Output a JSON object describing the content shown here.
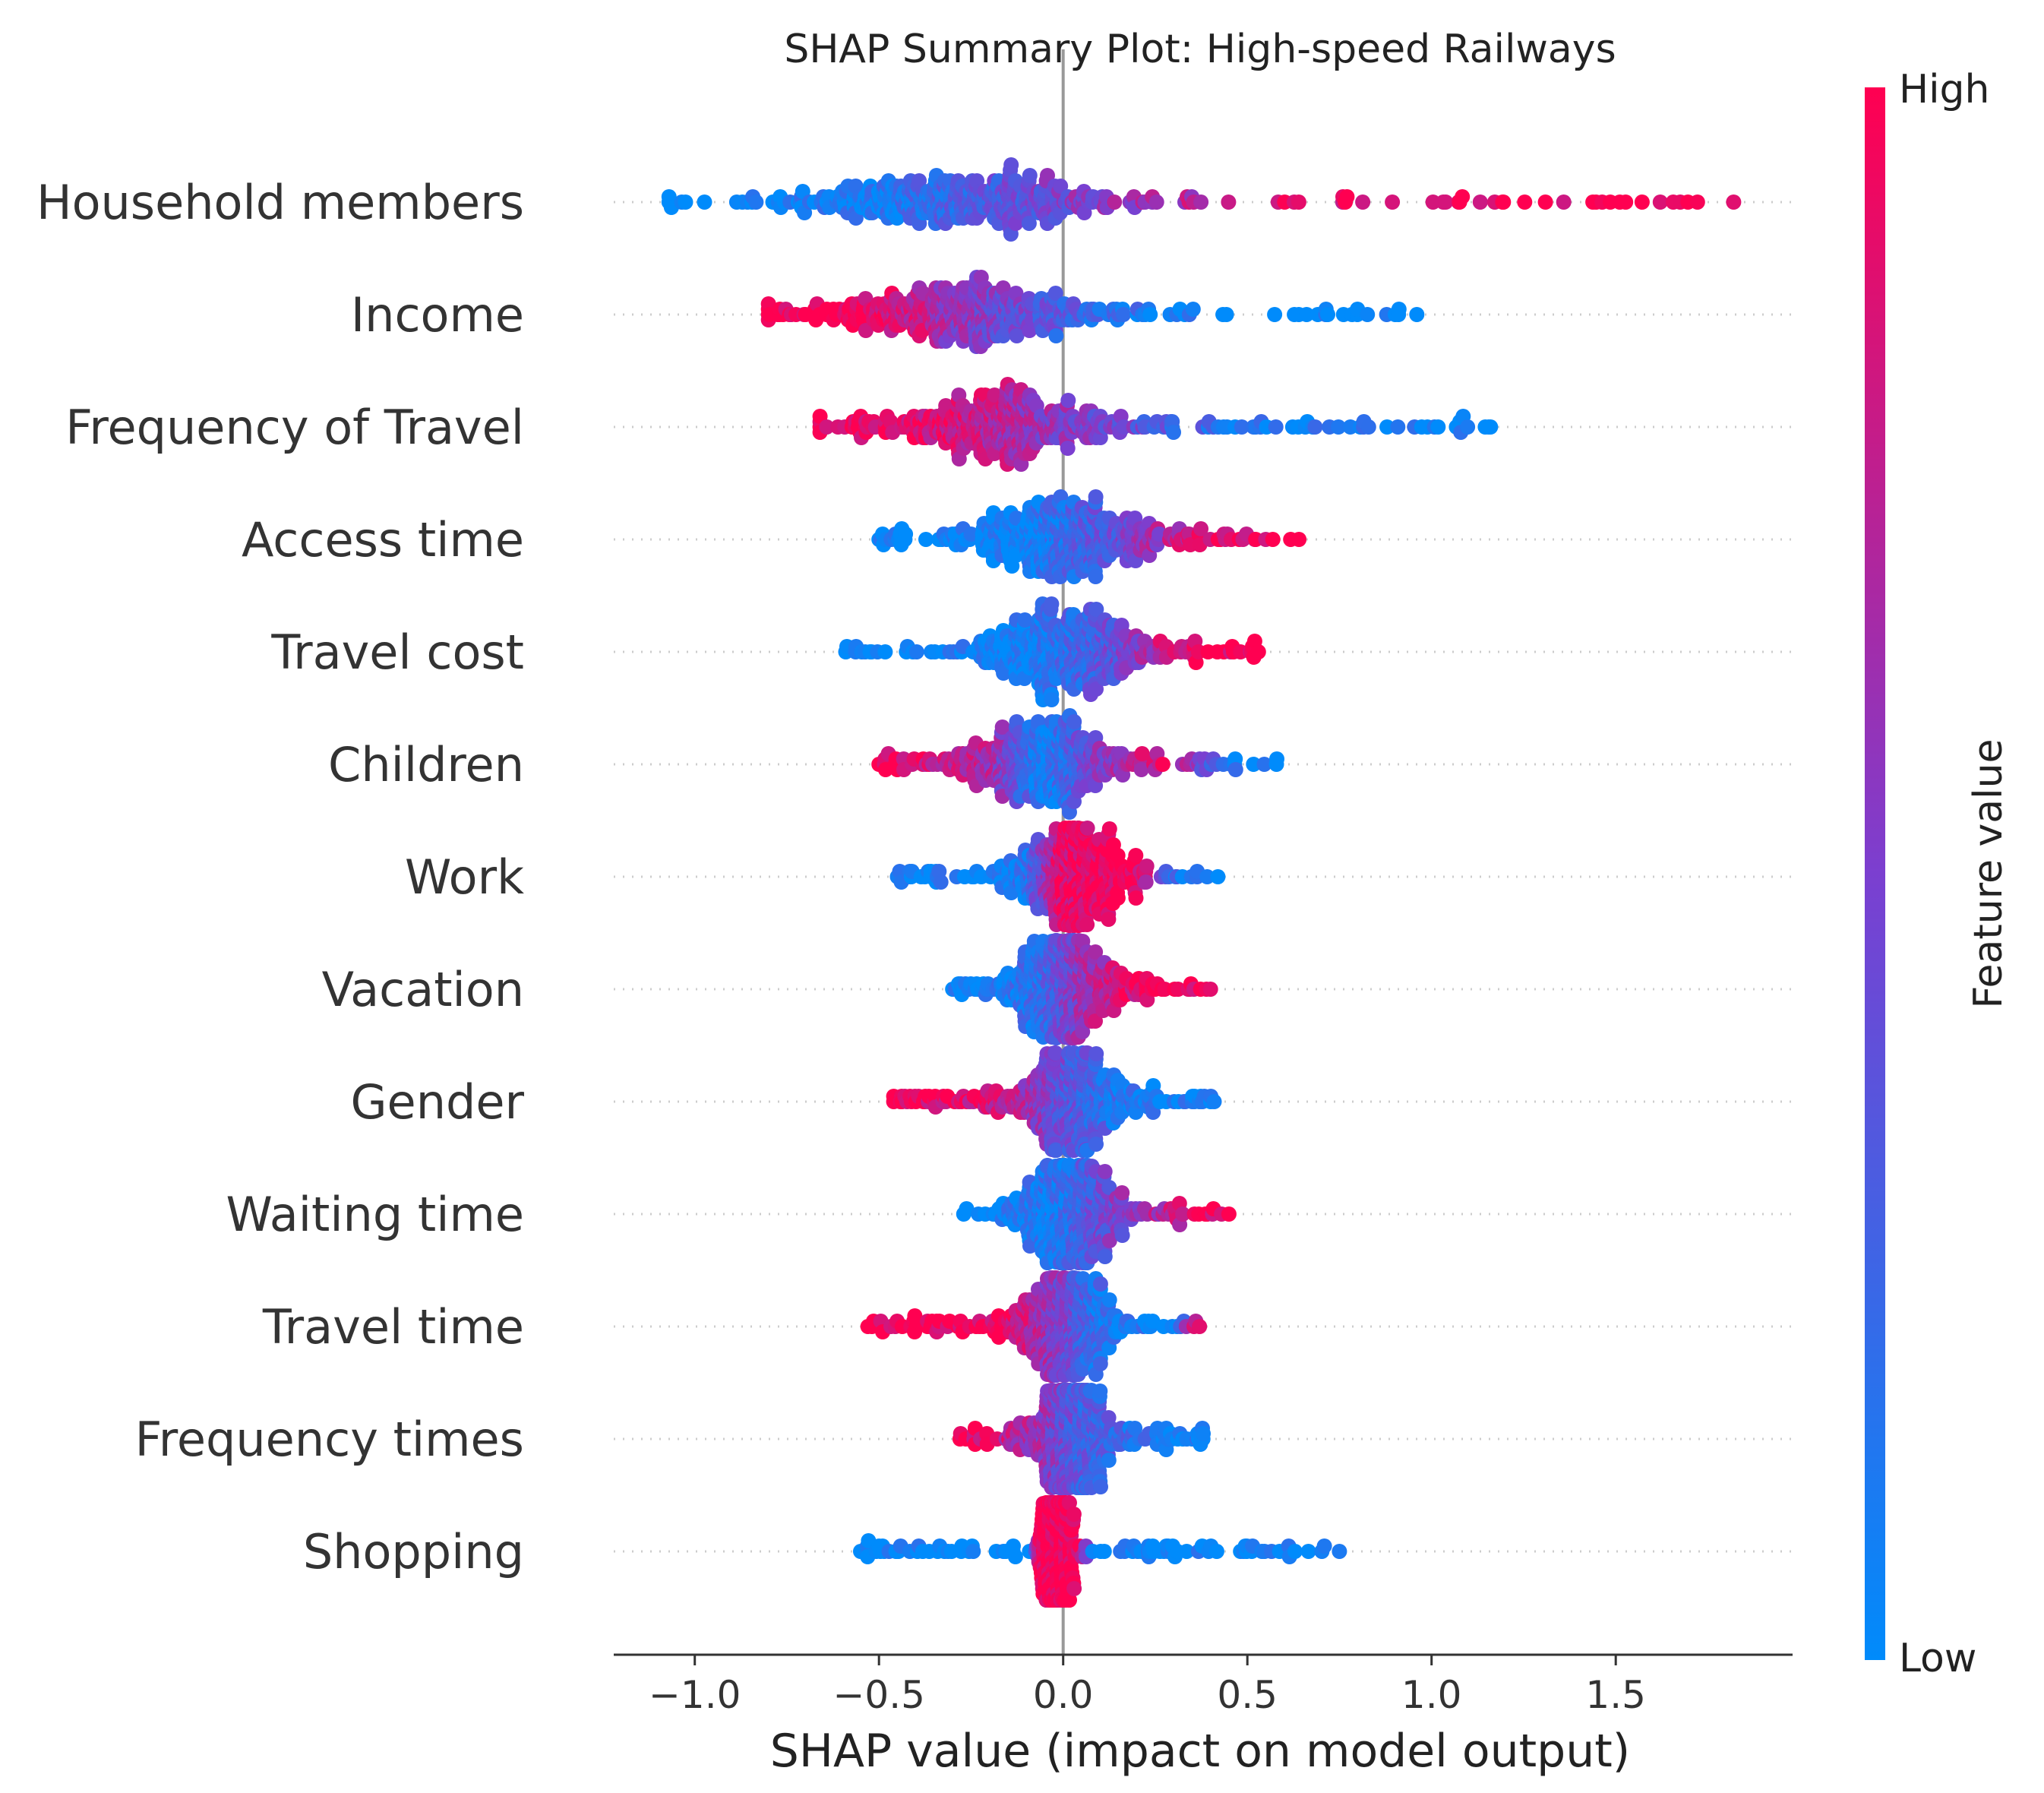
{
  "chart_data": {
    "type": "scatter",
    "subtype": "shap-beeswarm",
    "title": "SHAP Summary Plot: High-speed Railways",
    "xlabel": "SHAP value (impact on model output)",
    "xlim": [
      -1.22,
      1.98
    ],
    "x_ticks": [
      -1.0,
      -0.5,
      0.0,
      0.5,
      1.0,
      1.5
    ],
    "x_tick_labels": [
      "−1.0",
      "−0.5",
      "0.0",
      "0.5",
      "1.0",
      "1.5"
    ],
    "colorbar": {
      "title": "Feature value",
      "high_label": "High",
      "low_label": "Low",
      "high_color": "#ff0051",
      "mid_color": "#7b3fd0",
      "low_color": "#008bfb"
    },
    "features": [
      {
        "name": "Household members",
        "min": -1.07,
        "max": 1.82,
        "center": -0.28,
        "spread": 0.55,
        "corr": -1,
        "anchors": [
          [
            -1.07,
            0
          ],
          [
            -0.95,
            0
          ],
          [
            -0.5,
            0.1
          ],
          [
            -0.1,
            0.4
          ],
          [
            0.3,
            0.7
          ],
          [
            0.8,
            0.95
          ],
          [
            1.82,
            1
          ]
        ]
      },
      {
        "name": "Income",
        "min": -0.8,
        "max": 0.96,
        "center": -0.28,
        "spread": 0.45,
        "corr": 1,
        "anchors": [
          [
            -0.8,
            1
          ],
          [
            -0.5,
            0.95
          ],
          [
            -0.3,
            0.6
          ],
          [
            0.0,
            0.3
          ],
          [
            0.3,
            0.05
          ],
          [
            0.96,
            0
          ]
        ]
      },
      {
        "name": "Frequency of Travel",
        "min": -0.66,
        "max": 1.16,
        "center": -0.18,
        "spread": 0.42,
        "corr": 1,
        "anchors": [
          [
            -0.66,
            1
          ],
          [
            -0.3,
            0.85
          ],
          [
            -0.05,
            0.6
          ],
          [
            0.2,
            0.4
          ],
          [
            0.5,
            0.1
          ],
          [
            1.16,
            0
          ]
        ]
      },
      {
        "name": "Access time",
        "min": -0.5,
        "max": 0.64,
        "center": 0.0,
        "spread": 0.3,
        "corr": -1,
        "anchors": [
          [
            -0.5,
            0
          ],
          [
            -0.1,
            0.05
          ],
          [
            0.15,
            0.4
          ],
          [
            0.35,
            0.85
          ],
          [
            0.64,
            1
          ]
        ]
      },
      {
        "name": "Travel cost",
        "min": -0.59,
        "max": 0.53,
        "center": 0.0,
        "spread": 0.28,
        "corr": -1,
        "anchors": [
          [
            -0.59,
            0
          ],
          [
            -0.1,
            0.05
          ],
          [
            0.15,
            0.4
          ],
          [
            0.3,
            0.85
          ],
          [
            0.53,
            1
          ]
        ]
      },
      {
        "name": "Children",
        "min": -0.5,
        "max": 0.58,
        "center": -0.05,
        "spread": 0.25,
        "corr": 1,
        "anchors": [
          [
            -0.5,
            1
          ],
          [
            -0.2,
            0.7
          ],
          [
            -0.05,
            0.05
          ],
          [
            0.1,
            0.5
          ],
          [
            0.3,
            0.9
          ],
          [
            0.45,
            0.1
          ],
          [
            0.58,
            0
          ]
        ]
      },
      {
        "name": "Work",
        "min": -0.45,
        "max": 0.42,
        "center": 0.02,
        "spread": 0.2,
        "corr": -1,
        "anchors": [
          [
            -0.45,
            0
          ],
          [
            -0.1,
            0.1
          ],
          [
            0.0,
            0.9
          ],
          [
            0.2,
            1
          ],
          [
            0.3,
            0.2
          ],
          [
            0.42,
            0
          ]
        ]
      },
      {
        "name": "Vacation",
        "min": -0.3,
        "max": 0.4,
        "center": 0.0,
        "spread": 0.18,
        "corr": -1,
        "anchors": [
          [
            -0.3,
            0
          ],
          [
            -0.05,
            0.2
          ],
          [
            0.05,
            0.6
          ],
          [
            0.2,
            0.9
          ],
          [
            0.4,
            1
          ]
        ]
      },
      {
        "name": "Gender",
        "min": -0.46,
        "max": 0.41,
        "center": 0.02,
        "spread": 0.2,
        "corr": 1,
        "anchors": [
          [
            -0.46,
            1
          ],
          [
            -0.15,
            0.8
          ],
          [
            0.0,
            0.4
          ],
          [
            0.15,
            0.15
          ],
          [
            0.41,
            0
          ]
        ]
      },
      {
        "name": "Waiting time",
        "min": -0.27,
        "max": 0.45,
        "center": 0.02,
        "spread": 0.17,
        "corr": -1,
        "anchors": [
          [
            -0.27,
            0
          ],
          [
            0.0,
            0.15
          ],
          [
            0.15,
            0.5
          ],
          [
            0.3,
            0.8
          ],
          [
            0.45,
            1
          ]
        ]
      },
      {
        "name": "Travel time",
        "min": -0.53,
        "max": 0.37,
        "center": 0.0,
        "spread": 0.18,
        "corr": 1,
        "anchors": [
          [
            -0.53,
            1
          ],
          [
            -0.15,
            0.95
          ],
          [
            0.0,
            0.5
          ],
          [
            0.1,
            0.15
          ],
          [
            0.3,
            0.05
          ],
          [
            0.37,
            0.9
          ]
        ]
      },
      {
        "name": "Frequency times",
        "min": -0.28,
        "max": 0.38,
        "center": 0.02,
        "spread": 0.14,
        "corr": 1,
        "anchors": [
          [
            -0.28,
            1
          ],
          [
            -0.05,
            0.6
          ],
          [
            0.05,
            0.3
          ],
          [
            0.2,
            0.2
          ],
          [
            0.38,
            0.05
          ]
        ]
      },
      {
        "name": "Shopping",
        "min": -0.55,
        "max": 0.75,
        "center": -0.02,
        "spread": 0.05,
        "corr": 1,
        "anchors": [
          [
            -0.55,
            0
          ],
          [
            -0.08,
            0.02
          ],
          [
            -0.06,
            1
          ],
          [
            0.04,
            1
          ],
          [
            0.08,
            0.02
          ],
          [
            0.75,
            0
          ]
        ]
      }
    ]
  }
}
